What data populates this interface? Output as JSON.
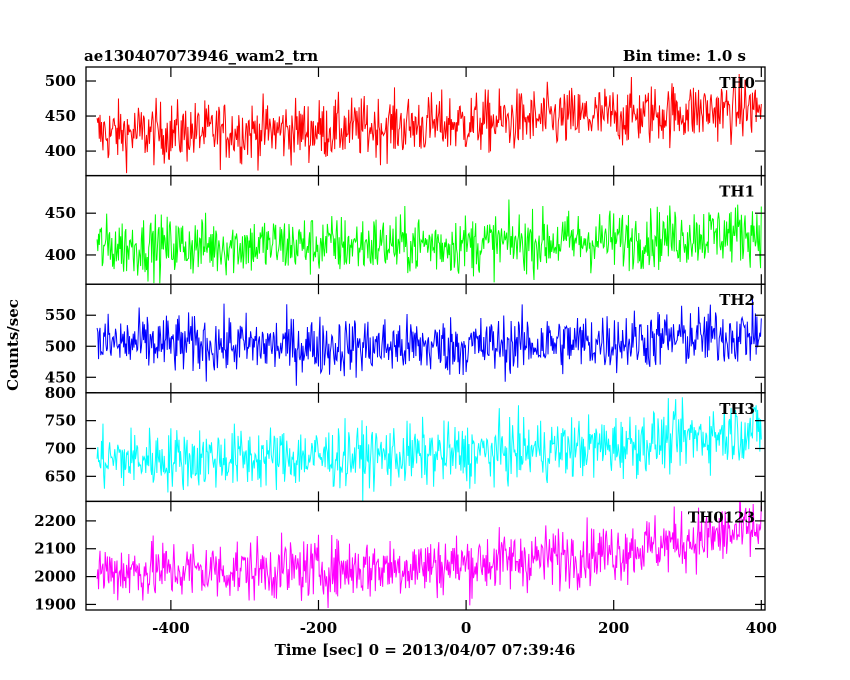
{
  "header": {
    "title": "ae130407073946_wam2_trn",
    "bin_time": "Bin time: 1.0 s"
  },
  "chart_data": {
    "type": "line",
    "xlabel": "Time [sec] 0 = 2013/04/07 07:39:46",
    "ylabel": "Counts/sec",
    "xlim": [
      -515,
      405
    ],
    "x_ticks": [
      "-400",
      "-200",
      "0",
      "200",
      "400"
    ],
    "x_tick_values": [
      -400,
      -200,
      0,
      200,
      400
    ],
    "data_x_range": [
      -500,
      400
    ],
    "grid": false,
    "panels": [
      {
        "name": "TH0",
        "color": "#ff0000",
        "ylim": [
          365,
          520
        ],
        "y_ticks": [
          "400",
          "450",
          "500"
        ],
        "y_tick_values": [
          400,
          450,
          500
        ],
        "trend": [
          [
            -500,
            425
          ],
          [
            -200,
            430
          ],
          [
            0,
            440
          ],
          [
            200,
            450
          ],
          [
            400,
            462
          ]
        ],
        "noise": 22
      },
      {
        "name": "TH1",
        "color": "#00ff00",
        "ylim": [
          365,
          495
        ],
        "y_ticks": [
          "400",
          "450"
        ],
        "y_tick_values": [
          400,
          450
        ],
        "trend": [
          [
            -500,
            410
          ],
          [
            -200,
            412
          ],
          [
            0,
            413
          ],
          [
            200,
            418
          ],
          [
            400,
            428
          ]
        ],
        "noise": 18
      },
      {
        "name": "TH2",
        "color": "#0000ff",
        "ylim": [
          425,
          600
        ],
        "y_ticks": [
          "450",
          "500",
          "550"
        ],
        "y_tick_values": [
          450,
          500,
          550
        ],
        "trend": [
          [
            -500,
            505
          ],
          [
            -200,
            500
          ],
          [
            0,
            500
          ],
          [
            200,
            508
          ],
          [
            400,
            520
          ]
        ],
        "noise": 24
      },
      {
        "name": "TH3",
        "color": "#00ffff",
        "ylim": [
          605,
          800
        ],
        "y_ticks": [
          "650",
          "700",
          "750",
          "800"
        ],
        "y_tick_values": [
          650,
          700,
          750,
          800
        ],
        "trend": [
          [
            -500,
            680
          ],
          [
            -200,
            685
          ],
          [
            0,
            690
          ],
          [
            200,
            705
          ],
          [
            400,
            735
          ]
        ],
        "noise": 28
      },
      {
        "name": "TH0123",
        "color": "#ff00ff",
        "ylim": [
          1880,
          2270
        ],
        "y_ticks": [
          "1900",
          "2000",
          "2100",
          "2200"
        ],
        "y_tick_values": [
          1900,
          2000,
          2100,
          2200
        ],
        "trend": [
          [
            -500,
            2020
          ],
          [
            -200,
            2025
          ],
          [
            0,
            2045
          ],
          [
            200,
            2090
          ],
          [
            400,
            2170
          ]
        ],
        "noise": 55
      }
    ]
  }
}
